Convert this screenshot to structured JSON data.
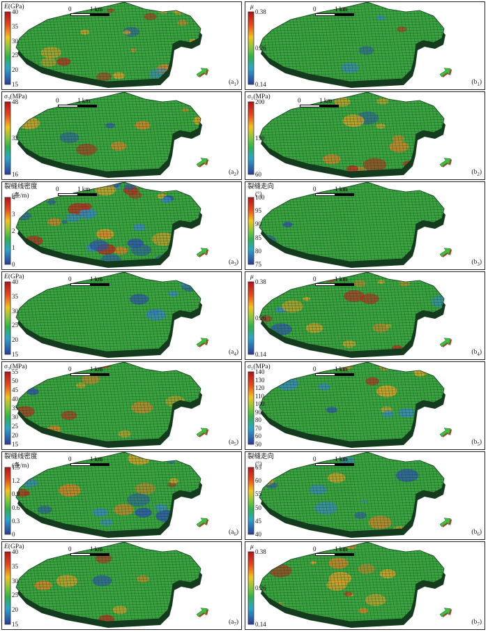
{
  "scale": {
    "zero": "0",
    "unit": "1 km"
  },
  "panels": [
    {
      "id": "a1",
      "label_main": "(a",
      "label_sub": "1",
      "title": "E(GPa)",
      "title2": "",
      "ticks": [
        "40",
        "35",
        "30",
        "25",
        "20",
        "15"
      ],
      "colormap": "jet",
      "mix": [
        0.3,
        0.55,
        0.15
      ]
    },
    {
      "id": "b1",
      "label_main": "(b",
      "label_sub": "1",
      "title": "μ",
      "title2": "",
      "ticks": [
        "0.38",
        "0.26",
        "0.14"
      ],
      "colormap": "jet",
      "mix": [
        0.05,
        0.9,
        0.05
      ]
    },
    {
      "id": "a2",
      "label_main": "(a",
      "label_sub": "2",
      "title": "σ₃(MPa)",
      "title2": "",
      "ticks": [
        "48",
        "32",
        "16"
      ],
      "colormap": "jet",
      "mix": [
        0.15,
        0.75,
        0.1
      ]
    },
    {
      "id": "b2",
      "label_main": "(b",
      "label_sub": "2",
      "title": "σ₁(MPa)",
      "title2": "",
      "ticks": [
        "200",
        "130",
        "60"
      ],
      "colormap": "jet",
      "mix": [
        0.25,
        0.65,
        0.1
      ]
    },
    {
      "id": "a3",
      "label_main": "(a",
      "label_sub": "3",
      "title": "裂缝线密度",
      "title2": "(条/m)",
      "ticks": [
        "4",
        "3",
        "2",
        "1",
        "0"
      ],
      "colormap": "jet",
      "mix": [
        0.35,
        0.4,
        0.25
      ]
    },
    {
      "id": "b3",
      "label_main": "(b",
      "label_sub": "3",
      "title": "裂缝走向",
      "title2": "(°)",
      "ticks": [
        "100",
        "95",
        "90",
        "85",
        "80",
        "75"
      ],
      "colormap": "jet",
      "mix": [
        0.1,
        0.8,
        0.1
      ]
    },
    {
      "id": "a4",
      "label_main": "(a",
      "label_sub": "4",
      "title": "E(GPa)",
      "title2": "",
      "ticks": [
        "40",
        "35",
        "30",
        "25",
        "20",
        "15"
      ],
      "colormap": "jet",
      "mix": [
        0.05,
        0.85,
        0.1
      ]
    },
    {
      "id": "b4",
      "label_main": "(b",
      "label_sub": "4",
      "title": "μ",
      "title2": "",
      "ticks": [
        "0.38",
        "0.26",
        "0.14"
      ],
      "colormap": "jet",
      "mix": [
        0.4,
        0.55,
        0.05
      ]
    },
    {
      "id": "a5",
      "label_main": "(a",
      "label_sub": "5",
      "title": "σ₃(MPa)",
      "title2": "",
      "ticks": [
        "55",
        "50",
        "45",
        "40",
        "35",
        "30",
        "25",
        "20",
        "15"
      ],
      "colormap": "jet",
      "mix": [
        0.2,
        0.75,
        0.05
      ]
    },
    {
      "id": "b5",
      "label_main": "(b",
      "label_sub": "5",
      "title": "σ₁(MPa)",
      "title2": "",
      "ticks": [
        "140",
        "130",
        "120",
        "110",
        "100",
        "90",
        "80",
        "70",
        "60",
        "50"
      ],
      "colormap": "jet",
      "mix": [
        0.25,
        0.65,
        0.1
      ]
    },
    {
      "id": "a6",
      "label_main": "(a",
      "label_sub": "6",
      "title": "裂缝线密度",
      "title2": "(条/m)",
      "ticks": [
        "1.5",
        "1.2",
        "0.9",
        "0.6",
        "0.3",
        "0"
      ],
      "colormap": "jet",
      "mix": [
        0.2,
        0.55,
        0.25
      ]
    },
    {
      "id": "b6",
      "label_main": "(b",
      "label_sub": "6",
      "title": "裂缝走向",
      "title2": "(°)",
      "ticks": [
        "65",
        "60",
        "55",
        "50",
        "45",
        "40"
      ],
      "colormap": "jet",
      "mix": [
        0.05,
        0.85,
        0.1
      ]
    },
    {
      "id": "a7",
      "label_main": "(a",
      "label_sub": "7",
      "title": "E(GPa)",
      "title2": "",
      "ticks": [
        "40",
        "35",
        "30",
        "25",
        "20",
        "15"
      ],
      "colormap": "jet",
      "mix": [
        0.1,
        0.8,
        0.1
      ]
    },
    {
      "id": "b7",
      "label_main": "(b",
      "label_sub": "7",
      "title": "μ",
      "title2": "",
      "ticks": [
        "0.38",
        "0.26",
        "0.14"
      ],
      "colormap": "jet",
      "mix": [
        0.4,
        0.55,
        0.05
      ]
    }
  ],
  "colors": {
    "green": "#3aa540",
    "orange": "#d9832a",
    "blue": "#2f56b0",
    "grid": "#1d5a26"
  }
}
